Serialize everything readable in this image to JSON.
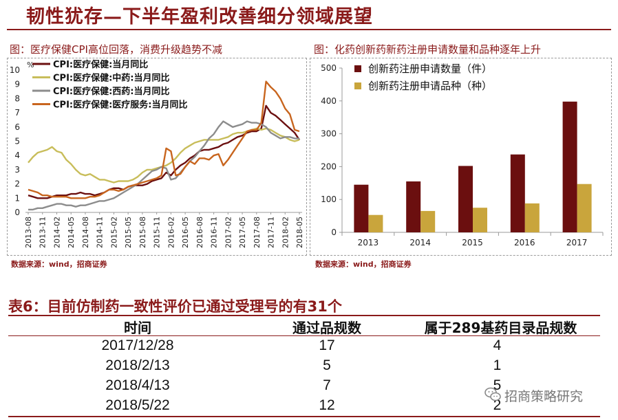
{
  "page_title": "韧性犹存—下半年盈利改善细分领域展望",
  "left_chart_title": "图：医疗保健CPI高位回落，消费升级趋势不减",
  "right_chart_title": "图：化药创新药新药注册申请数量和品种逐年上升",
  "source_left": "数据来源：wind，招商证券",
  "source_right": "数据来源：wind，招商证券",
  "table": {
    "title": "表6：目前仿制药一致性评价已通过受理号的有31个",
    "headers": [
      "时间",
      "通过品规数",
      "属于289基药目录品规数"
    ],
    "rows": [
      [
        "2017/12/28",
        "17",
        "4"
      ],
      [
        "2018/2/13",
        "5",
        "1"
      ],
      [
        "2018/4/13",
        "7",
        "5"
      ],
      [
        "2018/5/22",
        "12",
        "2"
      ]
    ]
  },
  "watermark": "招商策略研究",
  "icons": {
    "watermark": "wechat-icon"
  },
  "chart_data": [
    {
      "type": "line",
      "title": "",
      "ylabel": "%",
      "ylim": [
        0,
        10
      ],
      "yticks": [
        0,
        1,
        2,
        3,
        4,
        5,
        6,
        7,
        8,
        9,
        10
      ],
      "x_tick_labels": [
        "2013-08",
        "2013-11",
        "2014-02",
        "2014-05",
        "2014-08",
        "2014-11",
        "2015-02",
        "2015-05",
        "2015-08",
        "2015-11",
        "2016-02",
        "2016-05",
        "2016-08",
        "2016-11",
        "2017-02",
        "2017-05",
        "2017-08",
        "2017-11",
        "2018-02",
        "2018-05"
      ],
      "x": [
        "2013-08",
        "2013-09",
        "2013-10",
        "2013-11",
        "2013-12",
        "2014-01",
        "2014-02",
        "2014-03",
        "2014-04",
        "2014-05",
        "2014-06",
        "2014-07",
        "2014-08",
        "2014-09",
        "2014-10",
        "2014-11",
        "2014-12",
        "2015-01",
        "2015-02",
        "2015-03",
        "2015-04",
        "2015-05",
        "2015-06",
        "2015-07",
        "2015-08",
        "2015-09",
        "2015-10",
        "2015-11",
        "2015-12",
        "2016-01",
        "2016-02",
        "2016-03",
        "2016-04",
        "2016-05",
        "2016-06",
        "2016-07",
        "2016-08",
        "2016-09",
        "2016-10",
        "2016-11",
        "2016-12",
        "2017-01",
        "2017-02",
        "2017-03",
        "2017-04",
        "2017-05",
        "2017-06",
        "2017-07",
        "2017-08",
        "2017-09",
        "2017-10",
        "2017-11",
        "2017-12",
        "2018-01",
        "2018-02",
        "2018-03",
        "2018-04",
        "2018-05"
      ],
      "series": [
        {
          "name": "CPI:医疗保健:当月同比",
          "color": "#6b0f0f",
          "values": [
            1.2,
            1.1,
            1.0,
            1.0,
            1.0,
            1.1,
            1.2,
            1.2,
            1.2,
            1.3,
            1.3,
            1.4,
            1.3,
            1.3,
            1.2,
            1.3,
            1.4,
            1.6,
            1.7,
            1.7,
            1.6,
            1.8,
            1.9,
            1.9,
            1.9,
            2.0,
            2.2,
            2.3,
            2.4,
            2.8,
            2.6,
            3.0,
            3.3,
            3.5,
            3.8,
            4.0,
            4.3,
            4.4,
            4.4,
            4.5,
            4.6,
            4.8,
            4.9,
            5.1,
            5.3,
            5.4,
            5.6,
            5.7,
            5.7,
            5.9,
            7.5,
            7.0,
            6.8,
            6.5,
            6.2,
            5.9,
            5.6,
            5.1
          ]
        },
        {
          "name": "CPI:医疗保健:中药:当月同比",
          "color": "#c8bd5a",
          "values": [
            3.5,
            3.9,
            4.2,
            4.3,
            4.4,
            4.6,
            4.3,
            4.2,
            3.7,
            3.4,
            3.0,
            2.7,
            2.6,
            2.7,
            2.5,
            2.3,
            2.3,
            2.2,
            2.1,
            2.2,
            2.2,
            2.2,
            2.3,
            2.5,
            2.8,
            3.0,
            3.0,
            3.1,
            3.2,
            3.3,
            3.5,
            3.8,
            4.2,
            4.5,
            4.7,
            4.9,
            5.0,
            5.1,
            5.1,
            5.1,
            5.1,
            5.2,
            5.3,
            5.5,
            5.6,
            5.6,
            5.7,
            5.8,
            5.9,
            5.8,
            5.9,
            5.8,
            5.6,
            5.4,
            5.3,
            5.1,
            5.0,
            5.1
          ]
        },
        {
          "name": "CPI:医疗保健:西药:当月同比",
          "color": "#8c8c8c",
          "values": [
            0.2,
            0.2,
            0.3,
            0.3,
            0.4,
            0.5,
            0.6,
            0.6,
            0.5,
            0.5,
            0.4,
            0.5,
            0.5,
            0.6,
            0.7,
            0.8,
            0.8,
            0.9,
            1.0,
            1.2,
            1.4,
            1.6,
            1.8,
            2.0,
            2.3,
            2.6,
            2.9,
            3.0,
            3.2,
            3.1,
            2.3,
            2.4,
            2.8,
            3.2,
            3.6,
            3.9,
            4.3,
            4.7,
            5.2,
            5.5,
            6.0,
            6.4,
            6.2,
            6.0,
            6.1,
            6.2,
            6.4,
            6.3,
            6.3,
            6.2,
            6.0,
            5.6,
            5.4,
            5.2,
            5.3,
            5.3,
            5.2,
            5.2
          ]
        },
        {
          "name": "CPI:医疗保健:医疗服务:当月同比",
          "color": "#c8651e",
          "values": [
            1.6,
            1.5,
            1.4,
            1.2,
            1.2,
            1.1,
            1.1,
            1.1,
            1.1,
            1.0,
            1.0,
            1.0,
            1.0,
            1.1,
            1.1,
            1.2,
            1.4,
            1.6,
            1.6,
            1.5,
            1.6,
            1.8,
            1.9,
            2.0,
            2.1,
            2.2,
            2.3,
            2.4,
            2.6,
            4.5,
            4.3,
            2.6,
            2.7,
            3.2,
            3.6,
            3.4,
            3.8,
            3.8,
            3.7,
            4.0,
            4.1,
            3.3,
            3.7,
            4.2,
            4.7,
            5.2,
            5.7,
            5.8,
            5.8,
            6.3,
            9.2,
            8.8,
            8.5,
            8.0,
            7.3,
            6.9,
            5.8,
            5.7
          ]
        }
      ]
    },
    {
      "type": "bar",
      "title": "",
      "categories": [
        "2013",
        "2014",
        "2015",
        "2016",
        "2017"
      ],
      "ylim": [
        0,
        500
      ],
      "yticks": [
        0,
        100,
        200,
        300,
        400,
        500
      ],
      "series": [
        {
          "name": "创新药注册申请数量（件）",
          "color": "#6b0f0f",
          "values": [
            145,
            155,
            202,
            237,
            398
          ]
        },
        {
          "name": "创新药注册申请品种（种）",
          "color": "#c9a53c",
          "values": [
            53,
            65,
            75,
            88,
            147
          ]
        }
      ]
    }
  ]
}
